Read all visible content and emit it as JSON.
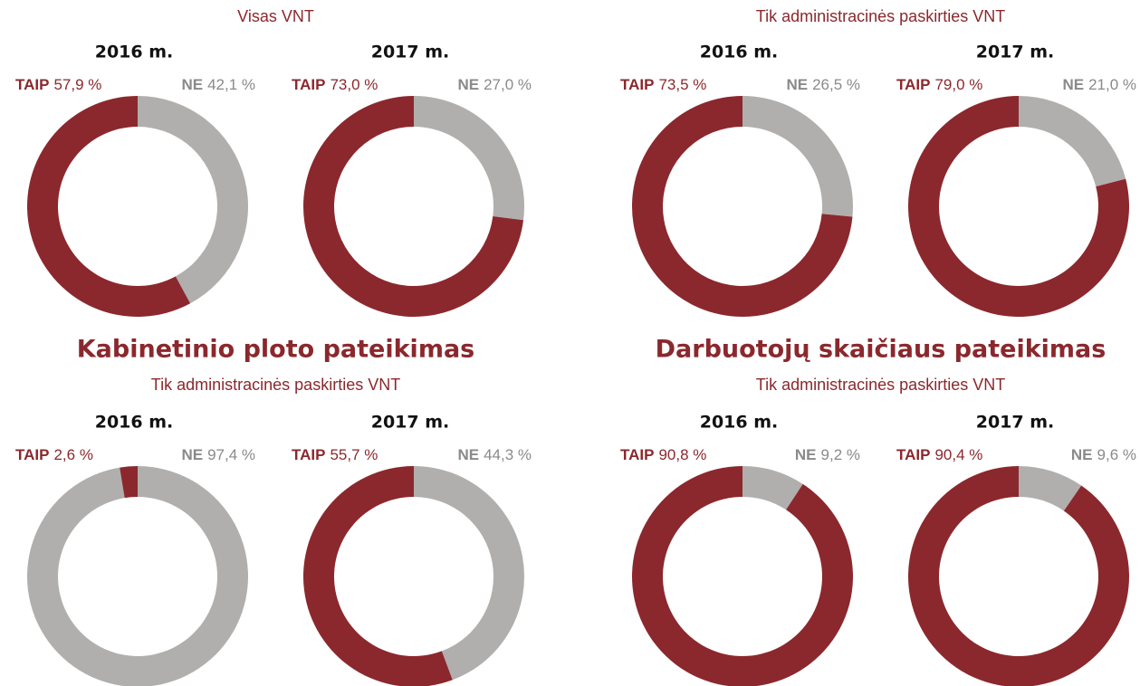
{
  "groups": [
    {
      "subtitle": "Visas VNT"
    },
    {
      "subtitle": "Tik administracinės paskirties VNT"
    },
    {
      "title": "Kabinetinio ploto pateikimas",
      "subtitle": "Tik administracinės paskirties VNT"
    },
    {
      "title": "Darbuotojų skaičiaus pateikimas",
      "subtitle": "Tik administracinės paskirties VNT"
    }
  ],
  "chart_data": [
    {
      "type": "donut",
      "title": "2016 m.",
      "categories": [
        "TAIP",
        "NE"
      ],
      "values": [
        57.9,
        42.1
      ],
      "value_labels": [
        "57,9 %",
        "42,1 %"
      ],
      "colors": [
        "#8b282d",
        "#b0afad"
      ]
    },
    {
      "type": "donut",
      "title": "2017 m.",
      "categories": [
        "TAIP",
        "NE"
      ],
      "values": [
        73.0,
        27.0
      ],
      "value_labels": [
        "73,0 %",
        "27,0 %"
      ],
      "colors": [
        "#8b282d",
        "#b0afad"
      ]
    },
    {
      "type": "donut",
      "title": "2016 m.",
      "categories": [
        "TAIP",
        "NE"
      ],
      "values": [
        73.5,
        26.5
      ],
      "value_labels": [
        "73,5 %",
        "26,5 %"
      ],
      "colors": [
        "#8b282d",
        "#b0afad"
      ]
    },
    {
      "type": "donut",
      "title": "2017 m.",
      "categories": [
        "TAIP",
        "NE"
      ],
      "values": [
        79.0,
        21.0
      ],
      "value_labels": [
        "79,0 %",
        "21,0 %"
      ],
      "colors": [
        "#8b282d",
        "#b0afad"
      ]
    },
    {
      "type": "donut",
      "title": "2016 m.",
      "categories": [
        "TAIP",
        "NE"
      ],
      "values": [
        2.6,
        97.4
      ],
      "value_labels": [
        "2,6 %",
        "97,4 %"
      ],
      "colors": [
        "#8b282d",
        "#b0afad"
      ]
    },
    {
      "type": "donut",
      "title": "2017 m.",
      "categories": [
        "TAIP",
        "NE"
      ],
      "values": [
        55.7,
        44.3
      ],
      "value_labels": [
        "55,7 %",
        "44,3 %"
      ],
      "colors": [
        "#8b282d",
        "#b0afad"
      ]
    },
    {
      "type": "donut",
      "title": "2016 m.",
      "categories": [
        "TAIP",
        "NE"
      ],
      "values": [
        90.8,
        9.2
      ],
      "value_labels": [
        "90,8 %",
        "9,2 %"
      ],
      "colors": [
        "#8b282d",
        "#b0afad"
      ]
    },
    {
      "type": "donut",
      "title": "2017 m.",
      "categories": [
        "TAIP",
        "NE"
      ],
      "values": [
        90.4,
        9.6
      ],
      "value_labels": [
        "90,4 %",
        "9,6 %"
      ],
      "colors": [
        "#8b282d",
        "#b0afad"
      ]
    }
  ]
}
